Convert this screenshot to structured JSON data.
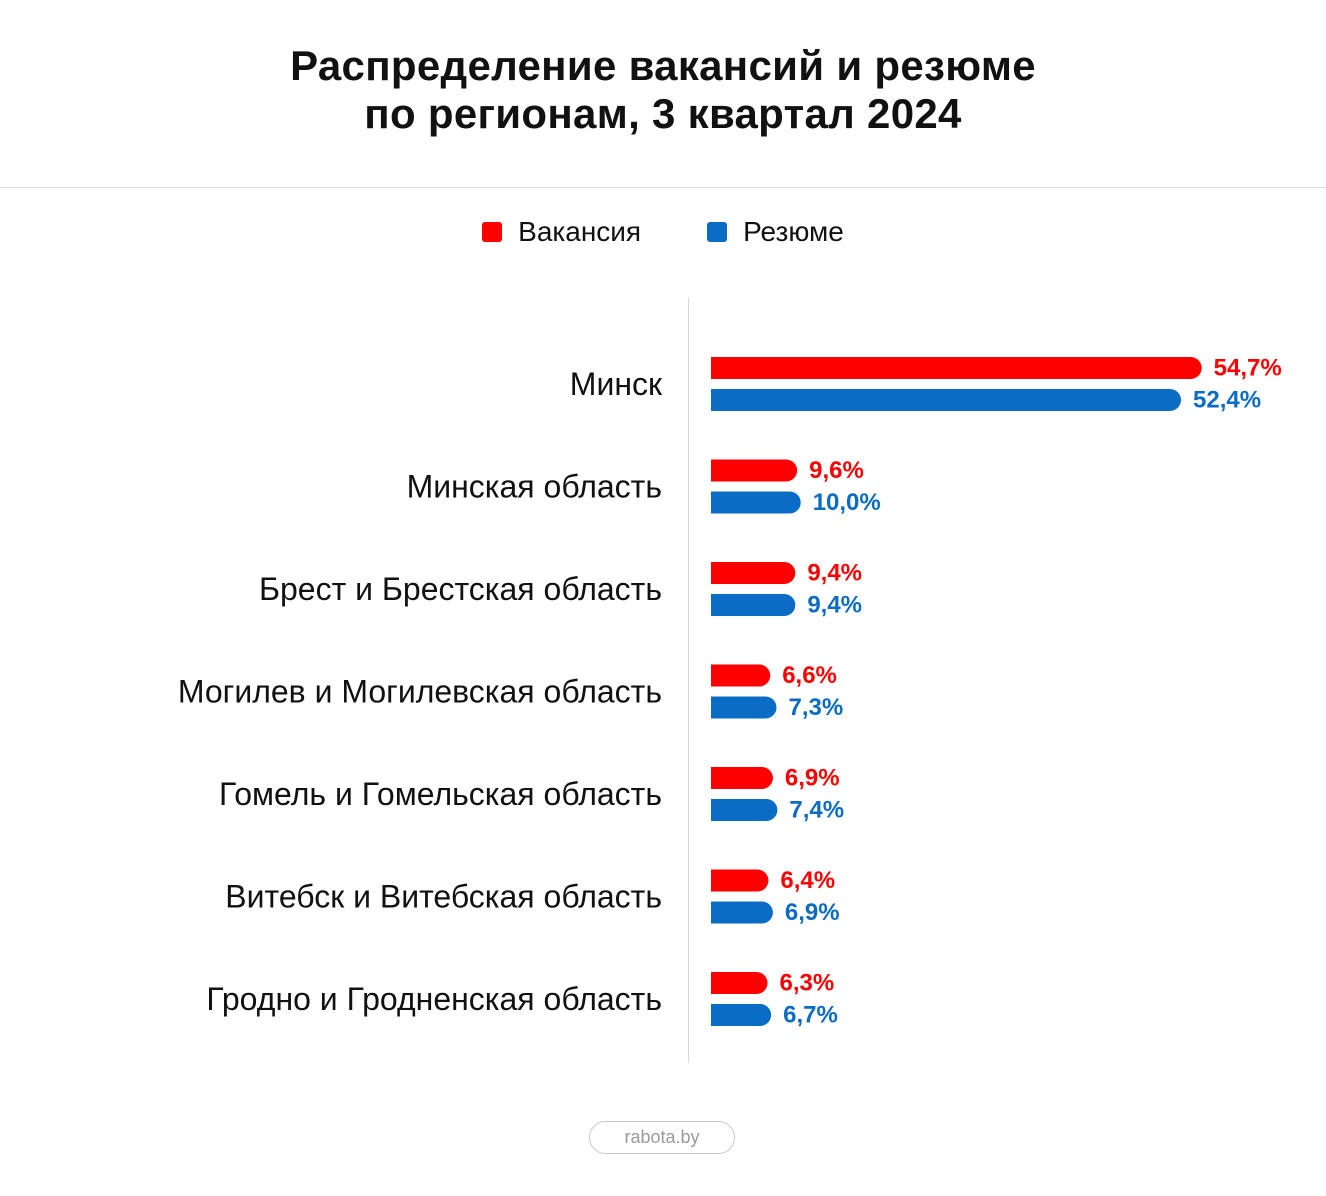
{
  "title_lines": [
    "Распределение вакансий и резюме",
    "по регионам, 3 квартал 2024"
  ],
  "legend": [
    {
      "label": "Вакансия",
      "color": "#ff0000"
    },
    {
      "label": "Резюме",
      "color": "#0a6cc4"
    }
  ],
  "chart_data": {
    "type": "bar",
    "orientation": "horizontal",
    "title": "Распределение вакансий и резюме по регионам, 3 квартал 2024",
    "categories": [
      "Минск",
      "Минская область",
      "Брест и Брестская область",
      "Могилев и Могилевская область",
      "Гомель и Гомельская область",
      "Витебск и Витебская область",
      "Гродно и Гродненская область"
    ],
    "series": [
      {
        "name": "Вакансия",
        "color": "#ff0000",
        "values": [
          54.7,
          9.6,
          9.4,
          6.6,
          6.9,
          6.4,
          6.3
        ],
        "labels": [
          "54,7%",
          "9,6%",
          "9,4%",
          "6,6%",
          "6,9%",
          "6,4%",
          "6,3%"
        ]
      },
      {
        "name": "Резюме",
        "color": "#0a6cc4",
        "values": [
          52.4,
          10.0,
          9.4,
          7.3,
          7.4,
          6.9,
          6.7
        ],
        "labels": [
          "52,4%",
          "10,0%",
          "9,4%",
          "7,3%",
          "7,4%",
          "6,9%",
          "6,7%"
        ]
      }
    ],
    "unit": "%",
    "xlim": [
      0,
      55
    ],
    "grid": false,
    "legend_position": "top-center"
  },
  "footer": {
    "badge": "rabota.by"
  }
}
